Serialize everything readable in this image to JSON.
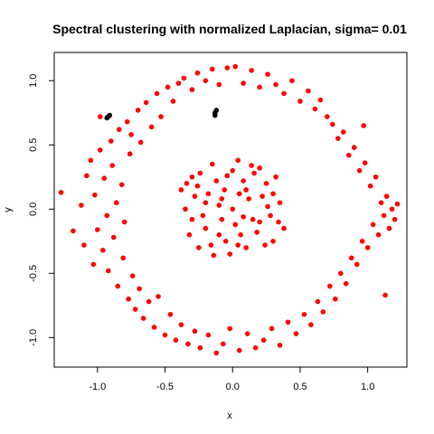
{
  "chart_data": {
    "type": "scatter",
    "title": "Spectral clustering with normalized Laplacian, sigma= 0.01",
    "xlabel": "x",
    "ylabel": "y",
    "xlim": [
      -1.32,
      1.29
    ],
    "ylim": [
      -1.23,
      1.22
    ],
    "x_ticks": [
      -1.0,
      -0.5,
      0.0,
      0.5,
      1.0
    ],
    "x_tick_labels": [
      "-1.0",
      "-0.5",
      "0.0",
      "0.5",
      "1.0"
    ],
    "y_ticks": [
      -1.0,
      -0.5,
      0.0,
      0.5,
      1.0
    ],
    "y_tick_labels": [
      "-1.0",
      "-0.5",
      "0.0",
      "0.5",
      "1.0"
    ],
    "grid": false,
    "legend": "none",
    "series": [
      {
        "color": "#ff0000",
        "description_points": "outer ring radius ~0.9-1.2 and inner disc radius ~0.4",
        "points": [
          [
            -1.27,
            0.13
          ],
          [
            -1.18,
            -0.17
          ],
          [
            -1.12,
            0.03
          ],
          [
            -1.1,
            -0.28
          ],
          [
            -1.08,
            0.26
          ],
          [
            -1.05,
            0.38
          ],
          [
            -1.03,
            -0.43
          ],
          [
            -1.02,
            0.11
          ],
          [
            -1.0,
            -0.16
          ],
          [
            -0.98,
            0.46
          ],
          [
            -0.96,
            -0.32
          ],
          [
            -0.95,
            0.24
          ],
          [
            -0.93,
            -0.05
          ],
          [
            -0.92,
            -0.48
          ],
          [
            -0.9,
            0.53
          ],
          [
            -0.89,
            0.34
          ],
          [
            -0.88,
            -0.22
          ],
          [
            -0.86,
            0.05
          ],
          [
            -0.85,
            -0.6
          ],
          [
            -0.84,
            0.62
          ],
          [
            -0.82,
            0.19
          ],
          [
            -0.81,
            -0.38
          ],
          [
            -0.8,
            -0.1
          ],
          [
            -0.78,
            0.68
          ],
          [
            -0.77,
            -0.7
          ],
          [
            -0.76,
            0.43
          ],
          [
            -0.75,
            0.58
          ],
          [
            -0.74,
            -0.52
          ],
          [
            -0.72,
            -0.78
          ],
          [
            -0.7,
            0.77
          ],
          [
            -0.69,
            -0.62
          ],
          [
            -0.68,
            0.52
          ],
          [
            -0.66,
            -0.85
          ],
          [
            -0.64,
            0.83
          ],
          [
            -0.62,
            -0.72
          ],
          [
            -0.6,
            0.64
          ],
          [
            -0.58,
            -0.92
          ],
          [
            -0.56,
            0.9
          ],
          [
            -0.55,
            -0.68
          ],
          [
            -0.53,
            0.72
          ],
          [
            -0.5,
            -0.98
          ],
          [
            -0.48,
            0.95
          ],
          [
            -0.46,
            -0.82
          ],
          [
            -0.44,
            0.84
          ],
          [
            -0.42,
            -1.02
          ],
          [
            -0.4,
            0.98
          ],
          [
            -0.38,
            -0.9
          ],
          [
            -0.36,
            1.02
          ],
          [
            -0.33,
            -1.05
          ],
          [
            -0.3,
            0.93
          ],
          [
            -0.28,
            -0.95
          ],
          [
            -0.26,
            1.06
          ],
          [
            -0.24,
            -1.08
          ],
          [
            -0.2,
            1.0
          ],
          [
            -0.18,
            -0.98
          ],
          [
            -0.15,
            1.09
          ],
          [
            -0.12,
            -1.12
          ],
          [
            -0.1,
            0.97
          ],
          [
            -0.07,
            -1.05
          ],
          [
            -0.04,
            1.1
          ],
          [
            -0.02,
            -0.93
          ],
          [
            0.02,
            1.11
          ],
          [
            0.05,
            -1.1
          ],
          [
            0.08,
            0.98
          ],
          [
            0.11,
            -0.97
          ],
          [
            0.14,
            1.08
          ],
          [
            0.17,
            -1.08
          ],
          [
            0.2,
            0.95
          ],
          [
            0.23,
            -1.02
          ],
          [
            0.26,
            1.05
          ],
          [
            0.29,
            -0.93
          ],
          [
            0.32,
            0.97
          ],
          [
            0.35,
            -1.06
          ],
          [
            0.38,
            0.9
          ],
          [
            0.41,
            -0.88
          ],
          [
            0.44,
            1.0
          ],
          [
            0.47,
            -0.97
          ],
          [
            0.5,
            0.84
          ],
          [
            0.53,
            -0.82
          ],
          [
            0.56,
            0.92
          ],
          [
            0.58,
            -0.9
          ],
          [
            0.61,
            0.78
          ],
          [
            0.63,
            -0.72
          ],
          [
            0.65,
            0.85
          ],
          [
            0.67,
            -0.8
          ],
          [
            0.7,
            0.72
          ],
          [
            0.72,
            -0.6
          ],
          [
            0.74,
            0.66
          ],
          [
            0.76,
            -0.7
          ],
          [
            0.78,
            0.55
          ],
          [
            0.8,
            -0.5
          ],
          [
            0.82,
            0.6
          ],
          [
            0.84,
            -0.58
          ],
          [
            0.86,
            0.42
          ],
          [
            0.88,
            -0.38
          ],
          [
            0.9,
            0.48
          ],
          [
            0.92,
            -0.43
          ],
          [
            0.94,
            0.3
          ],
          [
            0.96,
            -0.25
          ],
          [
            0.98,
            0.36
          ],
          [
            1.0,
            -0.3
          ],
          [
            1.02,
            0.18
          ],
          [
            1.04,
            -0.12
          ],
          [
            1.06,
            0.25
          ],
          [
            1.08,
            -0.2
          ],
          [
            1.1,
            0.05
          ],
          [
            1.12,
            -0.05
          ],
          [
            1.14,
            0.1
          ],
          [
            1.16,
            -0.15
          ],
          [
            1.18,
            0.0
          ],
          [
            1.2,
            -0.08
          ],
          [
            1.22,
            0.04
          ],
          [
            1.13,
            -0.67
          ],
          [
            0.97,
            0.65
          ],
          [
            -0.98,
            0.72
          ],
          [
            -0.1,
            0.03
          ],
          [
            0.05,
            0.12
          ],
          [
            0.15,
            -0.08
          ],
          [
            -0.2,
            -0.15
          ],
          [
            0.25,
            0.2
          ],
          [
            -0.3,
            0.25
          ],
          [
            0.3,
            -0.25
          ],
          [
            -0.25,
            -0.3
          ],
          [
            0.0,
            0.3
          ],
          [
            0.1,
            -0.3
          ],
          [
            -0.35,
            0.0
          ],
          [
            0.35,
            0.05
          ],
          [
            -0.15,
            0.35
          ],
          [
            0.2,
            0.32
          ],
          [
            -0.05,
            -0.25
          ],
          [
            0.08,
            0.22
          ],
          [
            -0.18,
            0.12
          ],
          [
            0.12,
            0.08
          ],
          [
            -0.08,
            -0.08
          ],
          [
            0.18,
            -0.18
          ],
          [
            -0.28,
            0.1
          ],
          [
            0.28,
            -0.05
          ],
          [
            -0.22,
            -0.05
          ],
          [
            0.02,
            -0.12
          ],
          [
            -0.12,
            0.22
          ],
          [
            0.22,
            0.1
          ],
          [
            -0.32,
            -0.2
          ],
          [
            0.32,
            0.25
          ],
          [
            0.04,
            0.38
          ],
          [
            -0.02,
            -0.35
          ],
          [
            -0.38,
            0.15
          ],
          [
            0.38,
            -0.15
          ],
          [
            -0.16,
            -0.28
          ],
          [
            0.16,
            0.28
          ],
          [
            -0.06,
            0.15
          ],
          [
            0.06,
            -0.2
          ],
          [
            -0.24,
            0.28
          ],
          [
            0.24,
            -0.28
          ],
          [
            0.0,
            0.0
          ],
          [
            -0.1,
            -0.2
          ],
          [
            0.1,
            0.15
          ],
          [
            -0.2,
            0.05
          ],
          [
            0.2,
            -0.1
          ],
          [
            -0.3,
            -0.08
          ],
          [
            0.3,
            0.12
          ],
          [
            -0.04,
            0.26
          ],
          [
            0.04,
            -0.28
          ],
          [
            0.14,
            0.34
          ],
          [
            -0.14,
            -0.36
          ],
          [
            0.26,
            0.02
          ],
          [
            -0.26,
            0.18
          ],
          [
            0.08,
            -0.06
          ],
          [
            -0.08,
            0.08
          ],
          [
            0.34,
            -0.1
          ],
          [
            -0.34,
            0.2
          ]
        ]
      },
      {
        "color": "#000000",
        "points": [
          [
            -0.93,
            0.71
          ],
          [
            -0.92,
            0.72
          ],
          [
            -0.91,
            0.73
          ],
          [
            -0.13,
            0.73
          ],
          [
            -0.13,
            0.75
          ],
          [
            -0.12,
            0.77
          ]
        ]
      }
    ]
  }
}
